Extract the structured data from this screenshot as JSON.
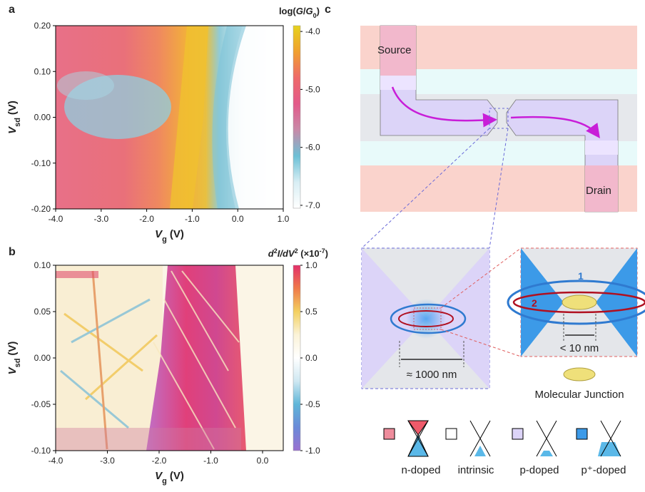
{
  "chart_data": [
    {
      "type": "heatmap",
      "panel": "a",
      "xlabel": {
        "symbol": "V",
        "subscript": "g",
        "unit": "(V)"
      },
      "ylabel": {
        "symbol": "V",
        "subscript": "sd",
        "unit": "(V)"
      },
      "xlim": [
        -4,
        1
      ],
      "xticks": [
        {
          "value": -4,
          "label": "-4.0"
        },
        {
          "value": -3,
          "label": "-3.0"
        },
        {
          "value": -2,
          "label": "-2.0"
        },
        {
          "value": -1,
          "label": "-1.0"
        },
        {
          "value": 0,
          "label": "0.0"
        },
        {
          "value": 1,
          "label": "1.0"
        }
      ],
      "ylim": [
        -0.2,
        0.2
      ],
      "yticks": [
        {
          "value": -0.2,
          "label": "-0.20"
        },
        {
          "value": -0.1,
          "label": "-0.10"
        },
        {
          "value": 0,
          "label": "0.00"
        },
        {
          "value": 0.1,
          "label": "0.10"
        },
        {
          "value": 0.2,
          "label": "0.20"
        }
      ],
      "colorbar": {
        "title": [
          {
            "text": "log(",
            "style": "normal"
          },
          {
            "text": "G",
            "style": "italic"
          },
          {
            "text": "/",
            "style": "normal"
          },
          {
            "text": "G",
            "style": "italic"
          },
          {
            "text": "0",
            "style": "sub"
          },
          {
            "text": ")",
            "style": "normal"
          }
        ],
        "clim": [
          -7.05,
          -3.9
        ],
        "ticks": [
          {
            "value": -4,
            "label": "-4.0"
          },
          {
            "value": -5,
            "label": "-5.0"
          },
          {
            "value": -6,
            "label": "-6.0"
          },
          {
            "value": -7,
            "label": "-7.0"
          }
        ],
        "colors": [
          "#e6d21e",
          "#f0a030",
          "#ee6a6a",
          "#e35a8a",
          "#c88aa8",
          "#6cc0d6",
          "#d8eef4",
          "#ffffff"
        ]
      }
    },
    {
      "type": "heatmap",
      "panel": "b",
      "xlabel": {
        "symbol": "V",
        "subscript": "g",
        "unit": "(V)"
      },
      "ylabel": {
        "symbol": "V",
        "subscript": "sd",
        "unit": "(V)"
      },
      "xlim": [
        -4,
        0.4
      ],
      "xticks": [
        {
          "value": -4,
          "label": "-4.0"
        },
        {
          "value": -3,
          "label": "-3.0"
        },
        {
          "value": -2,
          "label": "-2.0"
        },
        {
          "value": -1,
          "label": "-1.0"
        },
        {
          "value": 0,
          "label": "0.0"
        }
      ],
      "ylim": [
        -0.1,
        0.1
      ],
      "yticks": [
        {
          "value": -0.1,
          "label": "-0.10"
        },
        {
          "value": -0.05,
          "label": "-0.05"
        },
        {
          "value": 0,
          "label": "0.00"
        },
        {
          "value": 0.05,
          "label": "0.05"
        },
        {
          "value": 0.1,
          "label": "0.10"
        }
      ],
      "colorbar": {
        "title": [
          {
            "text": "d",
            "style": "italic"
          },
          {
            "text": "2",
            "style": "sup"
          },
          {
            "text": "I",
            "style": "italic"
          },
          {
            "text": "/d",
            "style": "italic"
          },
          {
            "text": "V",
            "style": "italic"
          },
          {
            "text": "2",
            "style": "sup"
          },
          {
            "text": " (×10",
            "style": "normal"
          },
          {
            "text": "-7",
            "style": "sup"
          },
          {
            "text": ")",
            "style": "normal"
          }
        ],
        "clim": [
          -1,
          1
        ],
        "ticks": [
          {
            "value": 1,
            "label": "1.0"
          },
          {
            "value": 0.5,
            "label": "0.5"
          },
          {
            "value": 0,
            "label": "0.0"
          },
          {
            "value": -0.5,
            "label": "-0.5"
          },
          {
            "value": -1,
            "label": "-1.0"
          }
        ],
        "colors": [
          "#e2306a",
          "#ef7a4a",
          "#f3d060",
          "#fbf3d8",
          "#ffffff",
          "#cfe8f2",
          "#5fb6d8",
          "#6a8ad8",
          "#9a70d0"
        ]
      }
    }
  ],
  "diagram": {
    "panel": "c",
    "source": "Source",
    "drain": "Drain",
    "inset_scale": "≈ 1000 nm",
    "junction_scale": "< 10 nm",
    "path_labels": [
      "1",
      "2"
    ],
    "molecule_label": "Molecular Junction",
    "legend": [
      "n-doped",
      "intrinsic",
      "p-doped",
      "p⁺-doped"
    ]
  }
}
